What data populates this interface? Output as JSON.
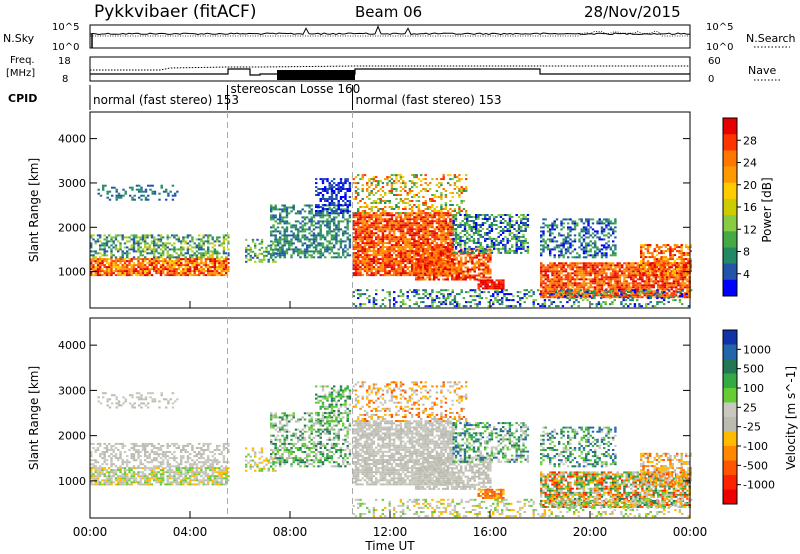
{
  "header": {
    "station": "Pykkvibaer (fitACF)",
    "beam": "Beam 06",
    "date": "28/Nov/2015"
  },
  "strip_labels": {
    "nsky": "N.Sky",
    "nsearch": "N.Search",
    "freq_top": "Freq.",
    "freq_unit": "[MHz]",
    "nave": "Nave",
    "cpid": "CPID",
    "nsky_top": "10^5",
    "nsky_bottom": "10^0",
    "nsearch_top": "10^5",
    "nsearch_bottom": "10^0",
    "freq_hi": "18",
    "freq_lo": "8",
    "nave_hi": "60",
    "nave_lo": "0"
  },
  "cpid_segments": [
    {
      "label": "normal (fast stereo) 153",
      "start_h": 0,
      "end_h": 5.5
    },
    {
      "label": "stereoscan Losse 160",
      "start_h": 5.5,
      "end_h": 10.5
    },
    {
      "label": "normal (fast stereo) 153",
      "start_h": 10.5,
      "end_h": 24
    }
  ],
  "chart_data": [
    {
      "type": "heatmap",
      "name": "power",
      "ylabel": "Slant Range [km]",
      "colorbar_label": "Power [dB]",
      "ylim": [
        180,
        4600
      ],
      "yticks": [
        1000,
        2000,
        3000,
        4000
      ],
      "xlim": [
        0,
        24
      ],
      "colorbar_ticks": [
        "28",
        "24",
        "20",
        "16",
        "12",
        "8",
        "4"
      ],
      "colorbar_colors": [
        "#e60000",
        "#ff3300",
        "#ff7700",
        "#ff9900",
        "#ffcc00",
        "#cccc00",
        "#88cc44",
        "#44aa44",
        "#228866",
        "#2255aa",
        "#0000ff"
      ]
    },
    {
      "type": "heatmap",
      "name": "velocity",
      "ylabel": "Slant Range [km]",
      "colorbar_label": "Velocity [m s^-1]",
      "ylim": [
        180,
        4600
      ],
      "yticks": [
        1000,
        2000,
        3000,
        4000
      ],
      "xlim": [
        0,
        24
      ],
      "colorbar_ticks": [
        "1000",
        "500",
        "100",
        "25",
        "-25",
        "-100",
        "-500",
        "-1000"
      ],
      "colorbar_colors": [
        "#1133aa",
        "#2266aa",
        "#227755",
        "#33aa44",
        "#66cc33",
        "#c8c8c0",
        "#bbbbb0",
        "#ffbb00",
        "#ff8800",
        "#ff5500",
        "#ff2200",
        "#ee0000"
      ]
    }
  ],
  "x_axis": {
    "ticks": [
      "00:00",
      "04:00",
      "08:00",
      "12:00",
      "16:00",
      "20:00",
      "00:00"
    ],
    "label": "Time UT"
  }
}
